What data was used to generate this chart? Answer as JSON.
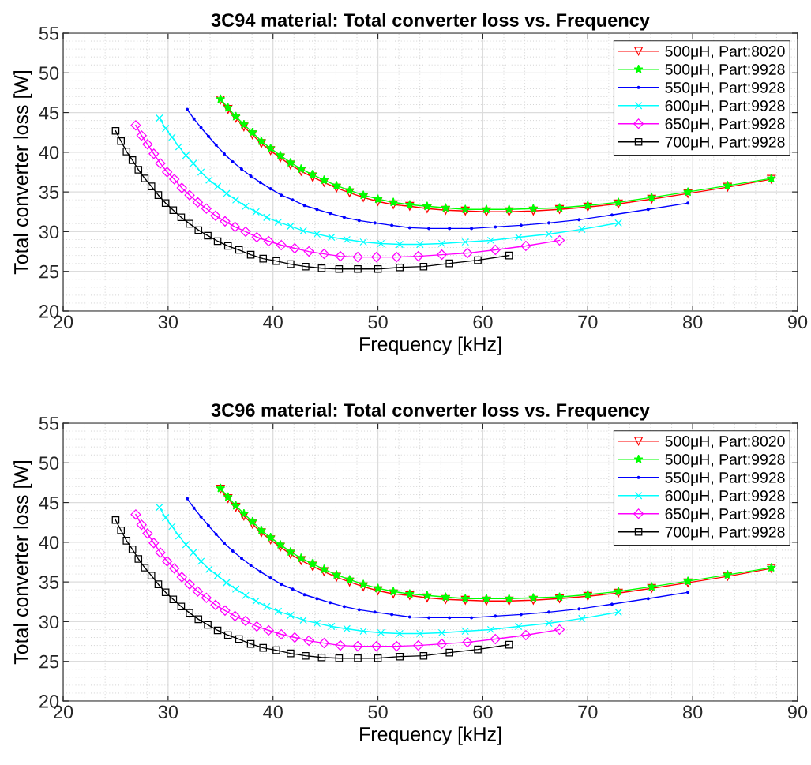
{
  "chart_data": [
    {
      "type": "line",
      "title": "3C94 material: Total converter loss vs. Frequency",
      "xlabel": "Frequency [kHz]",
      "ylabel": "Total converter loss [W]",
      "xlim": [
        20,
        90
      ],
      "xticks": [
        20,
        30,
        40,
        50,
        60,
        70,
        80,
        90
      ],
      "ylim": [
        20,
        55
      ],
      "yticks": [
        20,
        25,
        30,
        35,
        40,
        45,
        50,
        55
      ],
      "grid": true,
      "legend": "top right",
      "line_style": "solid",
      "series": [
        {
          "name": "500μH, Part:8020",
          "color": "#ff0000",
          "marker": "triangle",
          "x": [
            35,
            35.71,
            36.46,
            37.23,
            38.04,
            38.89,
            39.77,
            40.7,
            41.67,
            42.68,
            43.75,
            44.87,
            46.05,
            47.3,
            48.61,
            50.0,
            51.47,
            53.03,
            54.69,
            56.45,
            58.33,
            60.34,
            62.5,
            64.81,
            67.31,
            70.0,
            72.92,
            76.09,
            79.55,
            83.33,
            87.5
          ],
          "values": [
            46.6,
            45.4,
            44.3,
            43.2,
            42.2,
            41.1,
            40.2,
            39.3,
            38.4,
            37.6,
            36.9,
            36.2,
            35.5,
            34.9,
            34.3,
            33.8,
            33.4,
            33.2,
            32.9,
            32.7,
            32.6,
            32.5,
            32.5,
            32.6,
            32.8,
            33.1,
            33.5,
            34.1,
            34.8,
            35.6,
            36.6
          ]
        },
        {
          "name": "500μH, Part:9928",
          "color": "#00ff00",
          "marker": "star",
          "x": [
            35,
            35.71,
            36.46,
            37.23,
            38.04,
            38.89,
            39.77,
            40.7,
            41.67,
            42.68,
            43.75,
            44.87,
            46.05,
            47.3,
            48.61,
            50.0,
            51.47,
            53.03,
            54.69,
            56.45,
            58.33,
            60.34,
            62.5,
            64.81,
            67.31,
            70.0,
            72.92,
            76.09,
            79.55,
            83.33,
            87.5
          ],
          "values": [
            46.7,
            45.6,
            44.5,
            43.5,
            42.5,
            41.4,
            40.5,
            39.6,
            38.7,
            37.9,
            37.2,
            36.5,
            35.8,
            35.2,
            34.6,
            34.1,
            33.7,
            33.4,
            33.2,
            33.0,
            32.8,
            32.8,
            32.8,
            32.9,
            33.0,
            33.3,
            33.7,
            34.3,
            35.0,
            35.8,
            36.7
          ]
        },
        {
          "name": "550μH, Part:9928",
          "color": "#0000ff",
          "marker": "circle",
          "x": [
            31.82,
            32.47,
            33.14,
            33.85,
            34.58,
            35.35,
            36.16,
            37.0,
            37.88,
            38.8,
            39.77,
            40.79,
            41.87,
            43.0,
            44.19,
            45.45,
            46.79,
            48.21,
            49.72,
            51.32,
            53.03,
            54.86,
            56.82,
            58.92,
            61.19,
            63.64,
            66.29,
            69.17,
            72.31,
            75.76,
            79.55
          ],
          "values": [
            45.4,
            44.2,
            43.1,
            42.0,
            40.9,
            39.8,
            38.8,
            37.9,
            37.0,
            36.2,
            35.4,
            34.6,
            34.0,
            33.3,
            32.8,
            32.3,
            31.8,
            31.4,
            31.1,
            30.8,
            30.5,
            30.4,
            30.4,
            30.4,
            30.6,
            30.8,
            31.1,
            31.5,
            32.1,
            32.8,
            33.6
          ]
        },
        {
          "name": "600μH, Part:9928",
          "color": "#00ffff",
          "marker": "cross",
          "x": [
            29.17,
            29.76,
            30.38,
            31.03,
            31.7,
            32.41,
            33.14,
            33.91,
            34.72,
            35.57,
            36.46,
            37.39,
            38.38,
            39.41,
            40.51,
            41.67,
            42.89,
            44.19,
            45.57,
            47.04,
            48.61,
            50.29,
            52.08,
            54.01,
            56.09,
            58.33,
            60.76,
            63.41,
            66.29,
            69.44,
            72.92
          ],
          "values": [
            44.3,
            43.0,
            41.9,
            40.7,
            39.6,
            38.6,
            37.5,
            36.5,
            35.7,
            34.8,
            34.0,
            33.2,
            32.5,
            31.8,
            31.2,
            30.7,
            30.1,
            29.7,
            29.3,
            29.0,
            28.7,
            28.5,
            28.4,
            28.4,
            28.5,
            28.7,
            28.9,
            29.3,
            29.7,
            30.3,
            31.1
          ]
        },
        {
          "name": "650μH, Part:9928",
          "color": "#ff00ff",
          "marker": "diamond",
          "x": [
            26.92,
            27.47,
            28.04,
            28.64,
            29.26,
            29.91,
            30.59,
            31.31,
            32.05,
            32.83,
            33.65,
            34.52,
            35.43,
            36.38,
            37.39,
            38.46,
            39.59,
            40.79,
            42.07,
            43.42,
            44.87,
            46.42,
            48.08,
            49.86,
            51.78,
            53.85,
            56.09,
            58.53,
            61.19,
            64.1,
            67.31
          ],
          "values": [
            43.4,
            42.1,
            41.0,
            39.8,
            38.6,
            37.5,
            36.6,
            35.5,
            34.6,
            33.7,
            32.9,
            32.0,
            31.3,
            30.6,
            30.0,
            29.3,
            28.8,
            28.3,
            27.9,
            27.5,
            27.2,
            26.9,
            26.8,
            26.8,
            26.8,
            26.9,
            27.1,
            27.3,
            27.7,
            28.2,
            28.9
          ]
        },
        {
          "name": "700μH, Part:9928",
          "color": "#000000",
          "marker": "square",
          "x": [
            25,
            25.51,
            26.04,
            26.6,
            27.17,
            27.78,
            28.41,
            29.07,
            29.76,
            30.49,
            31.25,
            32.05,
            32.89,
            33.78,
            34.72,
            35.71,
            36.76,
            37.88,
            39.06,
            40.32,
            41.67,
            43.1,
            44.64,
            46.3,
            48.08,
            50.0,
            52.08,
            54.35,
            56.82,
            59.52,
            62.5
          ],
          "values": [
            42.7,
            41.4,
            40.1,
            39.0,
            37.8,
            36.7,
            35.7,
            34.6,
            33.6,
            32.7,
            31.8,
            31.0,
            30.2,
            29.5,
            28.8,
            28.2,
            27.7,
            27.1,
            26.6,
            26.3,
            25.9,
            25.6,
            25.4,
            25.3,
            25.3,
            25.3,
            25.5,
            25.6,
            26.0,
            26.4,
            27.0
          ]
        }
      ]
    },
    {
      "type": "line",
      "title": "3C96 material: Total converter loss vs. Frequency",
      "xlabel": "Frequency [kHz]",
      "ylabel": "Total converter loss [W]",
      "xlim": [
        20,
        90
      ],
      "xticks": [
        20,
        30,
        40,
        50,
        60,
        70,
        80,
        90
      ],
      "ylim": [
        20,
        55
      ],
      "yticks": [
        20,
        25,
        30,
        35,
        40,
        45,
        50,
        55
      ],
      "grid": true,
      "legend": "top right",
      "line_style": "solid",
      "series": [
        {
          "name": "500μH, Part:8020",
          "color": "#ff0000",
          "marker": "triangle",
          "x": [
            35,
            35.71,
            36.46,
            37.23,
            38.04,
            38.89,
            39.77,
            40.7,
            41.67,
            42.68,
            43.75,
            44.87,
            46.05,
            47.3,
            48.61,
            50.0,
            51.47,
            53.03,
            54.69,
            56.45,
            58.33,
            60.34,
            62.5,
            64.81,
            67.31,
            70.0,
            72.92,
            76.09,
            79.55,
            83.33,
            87.5
          ],
          "values": [
            46.7,
            45.5,
            44.4,
            43.3,
            42.3,
            41.2,
            40.3,
            39.4,
            38.5,
            37.7,
            37.0,
            36.3,
            35.6,
            35.0,
            34.4,
            33.9,
            33.5,
            33.3,
            33.0,
            32.8,
            32.7,
            32.6,
            32.6,
            32.7,
            32.9,
            33.2,
            33.6,
            34.2,
            34.9,
            35.7,
            36.7
          ]
        },
        {
          "name": "500μH, Part:9928",
          "color": "#00ff00",
          "marker": "star",
          "x": [
            35,
            35.71,
            36.46,
            37.23,
            38.04,
            38.89,
            39.77,
            40.7,
            41.67,
            42.68,
            43.75,
            44.87,
            46.05,
            47.3,
            48.61,
            50.0,
            51.47,
            53.03,
            54.69,
            56.45,
            58.33,
            60.34,
            62.5,
            64.81,
            67.31,
            70.0,
            72.92,
            76.09,
            79.55,
            83.33,
            87.5
          ],
          "values": [
            46.8,
            45.7,
            44.6,
            43.6,
            42.6,
            41.5,
            40.6,
            39.7,
            38.8,
            38.0,
            37.3,
            36.6,
            35.9,
            35.3,
            34.7,
            34.2,
            33.8,
            33.5,
            33.3,
            33.1,
            32.9,
            32.9,
            32.9,
            33.0,
            33.1,
            33.4,
            33.8,
            34.4,
            35.1,
            35.9,
            36.8
          ]
        },
        {
          "name": "550μH, Part:9928",
          "color": "#0000ff",
          "marker": "circle",
          "x": [
            31.82,
            32.47,
            33.14,
            33.85,
            34.58,
            35.35,
            36.16,
            37.0,
            37.88,
            38.8,
            39.77,
            40.79,
            41.87,
            43.0,
            44.19,
            45.45,
            46.79,
            48.21,
            49.72,
            51.32,
            53.03,
            54.86,
            56.82,
            58.92,
            61.19,
            63.64,
            66.29,
            69.17,
            72.31,
            75.76,
            79.55
          ],
          "values": [
            45.5,
            44.3,
            43.2,
            42.1,
            41.0,
            39.9,
            38.9,
            38.0,
            37.1,
            36.3,
            35.5,
            34.7,
            34.1,
            33.4,
            32.9,
            32.4,
            31.9,
            31.5,
            31.2,
            30.9,
            30.6,
            30.5,
            30.5,
            30.5,
            30.7,
            30.9,
            31.2,
            31.6,
            32.2,
            32.9,
            33.7
          ]
        },
        {
          "name": "600μH, Part:9928",
          "color": "#00ffff",
          "marker": "cross",
          "x": [
            29.17,
            29.76,
            30.38,
            31.03,
            31.7,
            32.41,
            33.14,
            33.91,
            34.72,
            35.57,
            36.46,
            37.39,
            38.38,
            39.41,
            40.51,
            41.67,
            42.89,
            44.19,
            45.57,
            47.04,
            48.61,
            50.29,
            52.08,
            54.01,
            56.09,
            58.33,
            60.76,
            63.41,
            66.29,
            69.44,
            72.92
          ],
          "values": [
            44.4,
            43.1,
            42.0,
            40.8,
            39.7,
            38.7,
            37.6,
            36.6,
            35.8,
            34.9,
            34.1,
            33.3,
            32.6,
            31.9,
            31.3,
            30.8,
            30.2,
            29.8,
            29.4,
            29.1,
            28.8,
            28.6,
            28.5,
            28.5,
            28.6,
            28.8,
            29.0,
            29.4,
            29.8,
            30.4,
            31.2
          ]
        },
        {
          "name": "650μH, Part:9928",
          "color": "#ff00ff",
          "marker": "diamond",
          "x": [
            26.92,
            27.47,
            28.04,
            28.64,
            29.26,
            29.91,
            30.59,
            31.31,
            32.05,
            32.83,
            33.65,
            34.52,
            35.43,
            36.38,
            37.39,
            38.46,
            39.59,
            40.79,
            42.07,
            43.42,
            44.87,
            46.42,
            48.08,
            49.86,
            51.78,
            53.85,
            56.09,
            58.53,
            61.19,
            64.1,
            67.31
          ],
          "values": [
            43.5,
            42.2,
            41.1,
            39.9,
            38.7,
            37.6,
            36.7,
            35.6,
            34.7,
            33.8,
            33.0,
            32.1,
            31.4,
            30.7,
            30.1,
            29.4,
            28.9,
            28.4,
            28.0,
            27.6,
            27.3,
            27.0,
            26.9,
            26.9,
            26.9,
            27.0,
            27.2,
            27.4,
            27.8,
            28.3,
            29.0
          ]
        },
        {
          "name": "700μH, Part:9928",
          "color": "#000000",
          "marker": "square",
          "x": [
            25,
            25.51,
            26.04,
            26.6,
            27.17,
            27.78,
            28.41,
            29.07,
            29.76,
            30.49,
            31.25,
            32.05,
            32.89,
            33.78,
            34.72,
            35.71,
            36.76,
            37.88,
            39.06,
            40.32,
            41.67,
            43.1,
            44.64,
            46.3,
            48.08,
            50.0,
            52.08,
            54.35,
            56.82,
            59.52,
            62.5
          ],
          "values": [
            42.8,
            41.5,
            40.2,
            39.1,
            37.9,
            36.8,
            35.8,
            34.7,
            33.7,
            32.8,
            31.9,
            31.1,
            30.3,
            29.6,
            28.9,
            28.3,
            27.8,
            27.2,
            26.7,
            26.4,
            26.0,
            25.7,
            25.5,
            25.4,
            25.4,
            25.4,
            25.6,
            25.7,
            26.1,
            26.5,
            27.1
          ]
        }
      ]
    }
  ]
}
